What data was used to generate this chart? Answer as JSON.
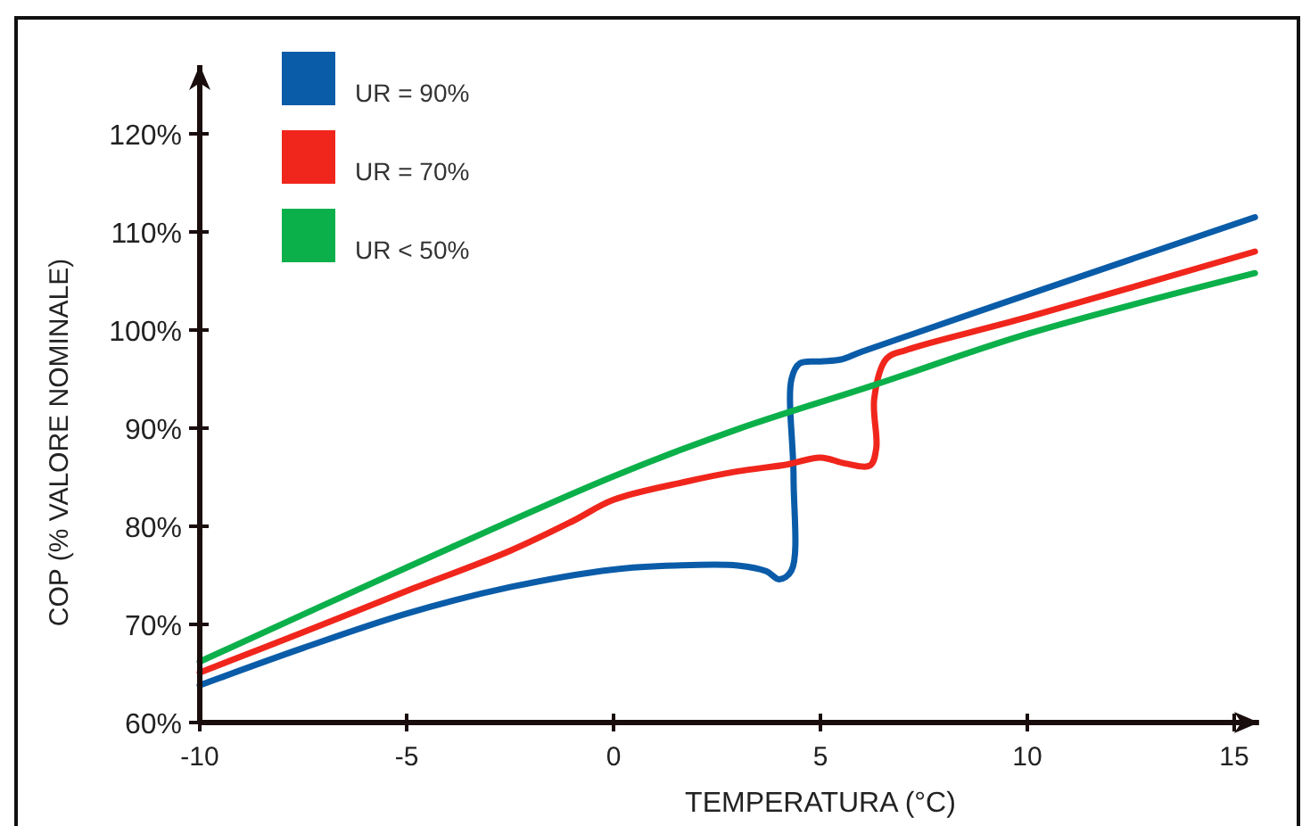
{
  "chart_data": {
    "type": "line",
    "xlabel": "TEMPERATURA (°C)",
    "ylabel": "COP (% VALORE NOMINALE)",
    "xlim": [
      -10,
      15.6
    ],
    "ylim": [
      60,
      127
    ],
    "xticks": [
      -10,
      -5,
      0,
      5,
      10,
      15
    ],
    "yticks": [
      {
        "value": 60,
        "label": "60%"
      },
      {
        "value": 70,
        "label": "70%"
      },
      {
        "value": 80,
        "label": "80%"
      },
      {
        "value": 90,
        "label": "90%"
      },
      {
        "value": 100,
        "label": "100%"
      },
      {
        "value": 110,
        "label": "110%"
      },
      {
        "value": 120,
        "label": "120%"
      }
    ],
    "grid": false,
    "legend": "top left",
    "marker": "none",
    "line_style": "solid",
    "series": [
      {
        "name": "UR = 90%",
        "color": "#0a5ca8",
        "x": [
          -10,
          -7.5,
          -5,
          -2.5,
          0,
          1.5,
          3,
          3.7,
          4.0,
          4.3,
          4.35,
          4.3,
          4.5,
          5.0,
          5.5,
          6,
          10,
          15.5
        ],
        "values": [
          63.8,
          67.6,
          71.1,
          73.8,
          75.6,
          76.0,
          76.0,
          75.4,
          74.6,
          75.5,
          85,
          95,
          96.6,
          96.8,
          97.0,
          97.8,
          103.6,
          111.5
        ]
      },
      {
        "name": "UR = 70%",
        "color": "#f0261c",
        "x": [
          -10,
          -7.5,
          -5,
          -2.5,
          -1,
          0,
          1.7,
          3,
          4.2,
          5.0,
          5.6,
          6.2,
          6.35,
          6.3,
          6.6,
          7.1,
          10,
          15.5
        ],
        "values": [
          65.1,
          69.2,
          73.4,
          77.5,
          80.5,
          82.7,
          84.5,
          85.6,
          86.3,
          87.0,
          86.4,
          86.2,
          88,
          93,
          97.1,
          98.0,
          101.3,
          108.0
        ]
      },
      {
        "name": "UR < 50%",
        "color": "#0cb04a",
        "x": [
          -10,
          -5,
          0,
          3,
          6.3,
          10,
          15.5
        ],
        "values": [
          66.2,
          75.8,
          85.1,
          89.9,
          94.4,
          99.6,
          105.8
        ]
      }
    ]
  }
}
